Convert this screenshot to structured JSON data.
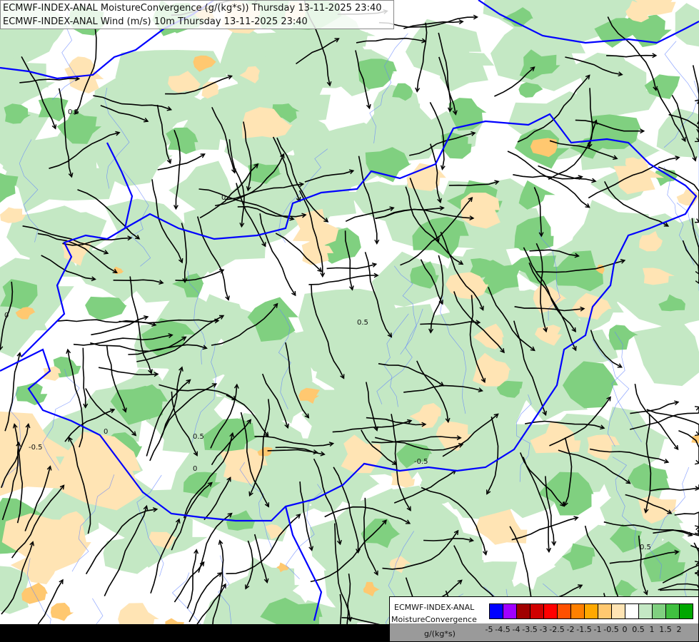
{
  "title": {
    "line1": "ECMWF-INDEX-ANAL MoistureConvergence (g/(kg*s)) Thursday 13-11-2025 23:40",
    "line2": "ECMWF-INDEX-ANAL Wind (m/s) 10m Thursday 13-11-2025 23:40"
  },
  "legend": {
    "model": "ECMWF-INDEX-ANAL",
    "parameter": "MoistureConvergence",
    "unit": "g/(kg*s)",
    "colors": [
      "#0000ff",
      "#a000ff",
      "#a00000",
      "#d00000",
      "#ff0000",
      "#ff5000",
      "#ff8000",
      "#ffa800",
      "#ffc870",
      "#ffe4b4",
      "#ffffff",
      "#c4e8c4",
      "#80d080",
      "#40c040",
      "#00a800"
    ],
    "ticks": [
      "-5",
      "-4.5",
      "-4",
      "-3.5",
      "-3",
      "-2.5",
      "-2",
      "-1.5",
      "-1",
      "-0.5",
      "0",
      "0.5",
      "1",
      "1.5",
      "2"
    ]
  },
  "map": {
    "contour_labels": [
      "0",
      "0.5",
      "-0.5",
      "0",
      "0.5",
      "0",
      "-0.5",
      "0.5",
      "0",
      "0.5"
    ],
    "colors": {
      "border": "#0000ff",
      "river": "#6080ff",
      "streamline": "#000000",
      "convergence_weak": "#c4e8c4",
      "convergence_mid": "#80d080",
      "divergence_weak": "#ffe4b4",
      "divergence_mid": "#ffc870"
    }
  }
}
